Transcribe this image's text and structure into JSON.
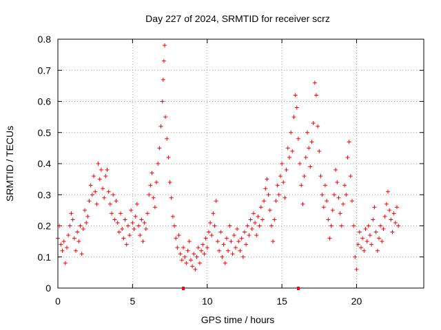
{
  "chart_data": {
    "type": "scatter",
    "title": "Day 227 of 2024, SRMTID for receiver scrz",
    "xlabel": "GPS time / hours",
    "ylabel": "SRMTID / TECUs",
    "xlim": [
      0,
      24.5
    ],
    "ylim": [
      0,
      0.8
    ],
    "x_ticks": [
      0,
      5,
      10,
      15,
      20
    ],
    "x_tick_labels": [
      "0",
      "5",
      "10",
      "15",
      "20"
    ],
    "y_ticks": [
      0,
      0.1,
      0.2,
      0.3,
      0.4,
      0.5,
      0.6,
      0.7,
      0.8
    ],
    "y_tick_labels": [
      "0",
      "0.1",
      "0.2",
      "0.3",
      "0.4",
      "0.5",
      "0.6",
      "0.7",
      "0.8"
    ],
    "grid": true,
    "marker": "+",
    "marker_color": "#ff0000",
    "axis_markers_x": [
      8.4,
      16.1
    ],
    "series": [
      {
        "name": "SRMTID",
        "points": [
          [
            0.0,
            0.16
          ],
          [
            0.1,
            0.2
          ],
          [
            0.2,
            0.14
          ],
          [
            0.3,
            0.12
          ],
          [
            0.4,
            0.15
          ],
          [
            0.5,
            0.08
          ],
          [
            0.6,
            0.13
          ],
          [
            0.7,
            0.17
          ],
          [
            0.8,
            0.2
          ],
          [
            0.9,
            0.24
          ],
          [
            1.0,
            0.22
          ],
          [
            1.1,
            0.16
          ],
          [
            1.2,
            0.12
          ],
          [
            1.3,
            0.18
          ],
          [
            1.4,
            0.15
          ],
          [
            1.5,
            0.2
          ],
          [
            1.6,
            0.11
          ],
          [
            1.7,
            0.19
          ],
          [
            1.8,
            0.25
          ],
          [
            1.9,
            0.21
          ],
          [
            2.0,
            0.23
          ],
          [
            2.1,
            0.28
          ],
          [
            2.2,
            0.33
          ],
          [
            2.3,
            0.3
          ],
          [
            2.4,
            0.36
          ],
          [
            2.5,
            0.31
          ],
          [
            2.6,
            0.27
          ],
          [
            2.7,
            0.4
          ],
          [
            2.8,
            0.35
          ],
          [
            2.9,
            0.38
          ],
          [
            3.0,
            0.32
          ],
          [
            3.1,
            0.29
          ],
          [
            3.2,
            0.36
          ],
          [
            3.3,
            0.38
          ],
          [
            3.4,
            0.31
          ],
          [
            3.5,
            0.27
          ],
          [
            3.6,
            0.24
          ],
          [
            3.7,
            0.3
          ],
          [
            3.8,
            0.22
          ],
          [
            3.9,
            0.28
          ],
          [
            4.0,
            0.21
          ],
          [
            4.1,
            0.18
          ],
          [
            4.2,
            0.24
          ],
          [
            4.3,
            0.19
          ],
          [
            4.4,
            0.16
          ],
          [
            4.5,
            0.22
          ],
          [
            4.6,
            0.14
          ],
          [
            4.7,
            0.2
          ],
          [
            4.8,
            0.17
          ],
          [
            4.9,
            0.25
          ],
          [
            5.0,
            0.21
          ],
          [
            5.1,
            0.19
          ],
          [
            5.2,
            0.23
          ],
          [
            5.3,
            0.27
          ],
          [
            5.4,
            0.2
          ],
          [
            5.5,
            0.17
          ],
          [
            5.6,
            0.22
          ],
          [
            5.7,
            0.15
          ],
          [
            5.8,
            0.21
          ],
          [
            5.9,
            0.19
          ],
          [
            6.0,
            0.24
          ],
          [
            6.1,
            0.3
          ],
          [
            6.2,
            0.33
          ],
          [
            6.3,
            0.37
          ],
          [
            6.4,
            0.29
          ],
          [
            6.5,
            0.26
          ],
          [
            6.6,
            0.34
          ],
          [
            6.7,
            0.4
          ],
          [
            6.8,
            0.45
          ],
          [
            6.9,
            0.52
          ],
          [
            7.0,
            0.6
          ],
          [
            7.05,
            0.67
          ],
          [
            7.1,
            0.73
          ],
          [
            7.15,
            0.78
          ],
          [
            7.2,
            0.55
          ],
          [
            7.3,
            0.48
          ],
          [
            7.4,
            0.42
          ],
          [
            7.5,
            0.34
          ],
          [
            7.6,
            0.29
          ],
          [
            7.7,
            0.23
          ],
          [
            7.8,
            0.2
          ],
          [
            7.9,
            0.16
          ],
          [
            8.0,
            0.13
          ],
          [
            8.1,
            0.17
          ],
          [
            8.2,
            0.11
          ],
          [
            8.3,
            0.09
          ],
          [
            8.4,
            0.13
          ],
          [
            8.5,
            0.1
          ],
          [
            8.6,
            0.08
          ],
          [
            8.7,
            0.12
          ],
          [
            8.8,
            0.15
          ],
          [
            8.9,
            0.09
          ],
          [
            9.0,
            0.07
          ],
          [
            9.1,
            0.11
          ],
          [
            9.2,
            0.06
          ],
          [
            9.3,
            0.1
          ],
          [
            9.4,
            0.13
          ],
          [
            9.5,
            0.08
          ],
          [
            9.6,
            0.12
          ],
          [
            9.7,
            0.14
          ],
          [
            9.8,
            0.11
          ],
          [
            9.9,
            0.16
          ],
          [
            10.0,
            0.13
          ],
          [
            10.1,
            0.18
          ],
          [
            10.2,
            0.21
          ],
          [
            10.3,
            0.17
          ],
          [
            10.4,
            0.24
          ],
          [
            10.5,
            0.2
          ],
          [
            10.6,
            0.28
          ],
          [
            10.7,
            0.15
          ],
          [
            10.8,
            0.12
          ],
          [
            10.9,
            0.18
          ],
          [
            11.0,
            0.1
          ],
          [
            11.1,
            0.14
          ],
          [
            11.2,
            0.08
          ],
          [
            11.3,
            0.16
          ],
          [
            11.4,
            0.12
          ],
          [
            11.5,
            0.2
          ],
          [
            11.6,
            0.15
          ],
          [
            11.7,
            0.11
          ],
          [
            11.8,
            0.17
          ],
          [
            11.9,
            0.13
          ],
          [
            12.0,
            0.19
          ],
          [
            12.1,
            0.15
          ],
          [
            12.2,
            0.12
          ],
          [
            12.3,
            0.16
          ],
          [
            12.4,
            0.1
          ],
          [
            12.5,
            0.18
          ],
          [
            12.6,
            0.14
          ],
          [
            12.7,
            0.2
          ],
          [
            12.8,
            0.17
          ],
          [
            12.9,
            0.22
          ],
          [
            13.0,
            0.19
          ],
          [
            13.1,
            0.24
          ],
          [
            13.2,
            0.21
          ],
          [
            13.3,
            0.17
          ],
          [
            13.4,
            0.23
          ],
          [
            13.5,
            0.2
          ],
          [
            13.6,
            0.26
          ],
          [
            13.7,
            0.22
          ],
          [
            13.8,
            0.28
          ],
          [
            13.9,
            0.32
          ],
          [
            14.0,
            0.35
          ],
          [
            14.1,
            0.3
          ],
          [
            14.2,
            0.25
          ],
          [
            14.3,
            0.2
          ],
          [
            14.4,
            0.15
          ],
          [
            14.5,
            0.22
          ],
          [
            14.6,
            0.28
          ],
          [
            14.7,
            0.33
          ],
          [
            14.8,
            0.3
          ],
          [
            14.9,
            0.36
          ],
          [
            15.0,
            0.4
          ],
          [
            15.1,
            0.34
          ],
          [
            15.2,
            0.29
          ],
          [
            15.3,
            0.38
          ],
          [
            15.4,
            0.45
          ],
          [
            15.5,
            0.42
          ],
          [
            15.6,
            0.5
          ],
          [
            15.7,
            0.44
          ],
          [
            15.8,
            0.55
          ],
          [
            15.9,
            0.62
          ],
          [
            16.0,
            0.58
          ],
          [
            16.1,
            0.48
          ],
          [
            16.2,
            0.4
          ],
          [
            16.3,
            0.33
          ],
          [
            16.4,
            0.27
          ],
          [
            16.5,
            0.36
          ],
          [
            16.6,
            0.42
          ],
          [
            16.7,
            0.5
          ],
          [
            16.8,
            0.45
          ],
          [
            16.9,
            0.39
          ],
          [
            17.0,
            0.47
          ],
          [
            17.1,
            0.53
          ],
          [
            17.2,
            0.66
          ],
          [
            17.3,
            0.62
          ],
          [
            17.4,
            0.52
          ],
          [
            17.5,
            0.44
          ],
          [
            17.6,
            0.36
          ],
          [
            17.7,
            0.3
          ],
          [
            17.8,
            0.26
          ],
          [
            17.9,
            0.33
          ],
          [
            18.0,
            0.28
          ],
          [
            18.1,
            0.22
          ],
          [
            18.2,
            0.16
          ],
          [
            18.3,
            0.2
          ],
          [
            18.4,
            0.25
          ],
          [
            18.5,
            0.3
          ],
          [
            18.6,
            0.38
          ],
          [
            18.7,
            0.34
          ],
          [
            18.8,
            0.29
          ],
          [
            18.9,
            0.24
          ],
          [
            19.0,
            0.2
          ],
          [
            19.1,
            0.27
          ],
          [
            19.2,
            0.33
          ],
          [
            19.3,
            0.3
          ],
          [
            19.4,
            0.42
          ],
          [
            19.5,
            0.47
          ],
          [
            19.6,
            0.36
          ],
          [
            19.7,
            0.28
          ],
          [
            19.8,
            0.2
          ],
          [
            19.9,
            0.1
          ],
          [
            20.0,
            0.06
          ],
          [
            20.1,
            0.14
          ],
          [
            20.2,
            0.18
          ],
          [
            20.3,
            0.13
          ],
          [
            20.4,
            0.16
          ],
          [
            20.5,
            0.12
          ],
          [
            20.6,
            0.19
          ],
          [
            20.7,
            0.15
          ],
          [
            20.8,
            0.2
          ],
          [
            20.9,
            0.17
          ],
          [
            21.0,
            0.14
          ],
          [
            21.1,
            0.22
          ],
          [
            21.2,
            0.26
          ],
          [
            21.3,
            0.18
          ],
          [
            21.4,
            0.12
          ],
          [
            21.5,
            0.16
          ],
          [
            21.6,
            0.2
          ],
          [
            21.7,
            0.15
          ],
          [
            21.8,
            0.19
          ],
          [
            21.9,
            0.23
          ],
          [
            22.0,
            0.27
          ],
          [
            22.1,
            0.31
          ],
          [
            22.2,
            0.25
          ],
          [
            22.3,
            0.22
          ],
          [
            22.4,
            0.18
          ],
          [
            22.5,
            0.24
          ],
          [
            22.6,
            0.21
          ],
          [
            22.7,
            0.26
          ],
          [
            22.8,
            0.2
          ]
        ]
      }
    ]
  }
}
